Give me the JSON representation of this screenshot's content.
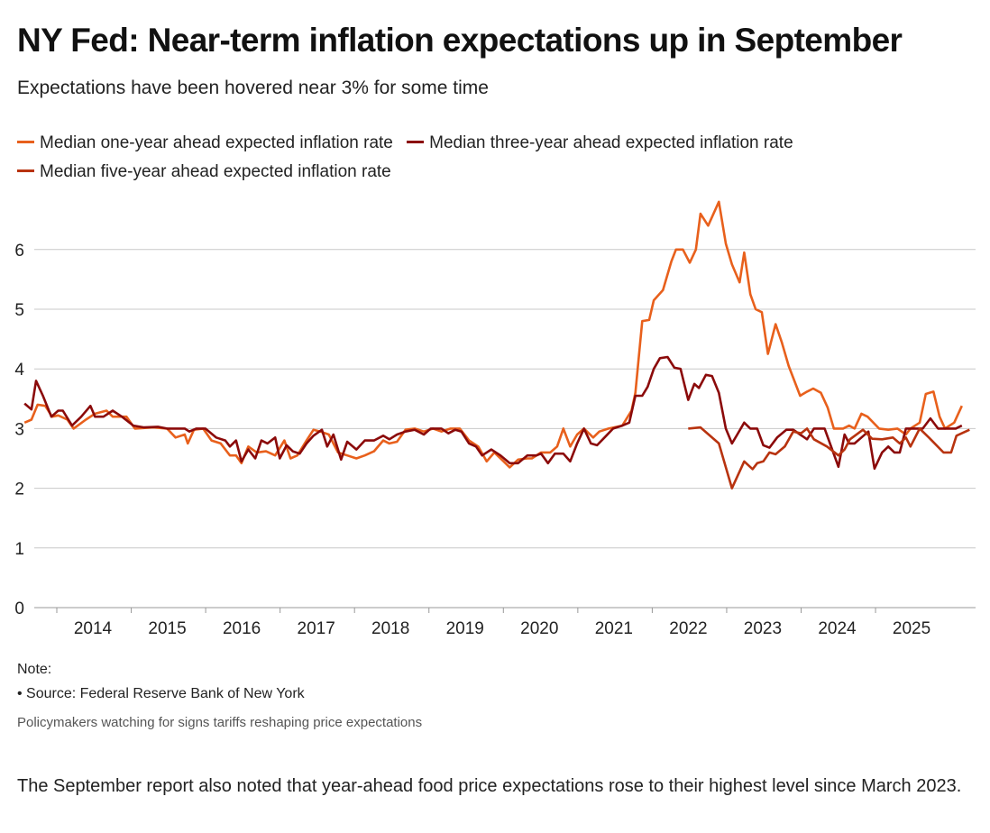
{
  "colors": {
    "one_year": "#e8601c",
    "three_year": "#8b0a0a",
    "five_year": "#b8330f",
    "grid": "#c8c8c8"
  },
  "chart_data": {
    "type": "line",
    "title": "NY Fed: Near-term inflation expectations up in September",
    "subtitle": "Expectations have been hovered near 3% for some time",
    "xlabel": "",
    "ylabel": "",
    "ylim": [
      0,
      7
    ],
    "yticks": [
      "0",
      "1",
      "2",
      "3",
      "4",
      "5",
      "6"
    ],
    "xticks": [
      "2014",
      "2015",
      "2016",
      "2017",
      "2018",
      "2019",
      "2020",
      "2021",
      "2022",
      "2023",
      "2024",
      "2025"
    ],
    "grid": true,
    "legend_position": "top",
    "series": [
      {
        "name": "Median one-year ahead expected inflation rate",
        "color_key": "one_year",
        "points": [
          [
            2013.42,
            3.1
          ],
          [
            2013.51,
            3.15
          ],
          [
            2013.59,
            3.4
          ],
          [
            2013.69,
            3.38
          ],
          [
            2013.78,
            3.2
          ],
          [
            2013.86,
            3.22
          ],
          [
            2013.98,
            3.15
          ],
          [
            2014.06,
            3.0
          ],
          [
            2014.22,
            3.15
          ],
          [
            2014.34,
            3.25
          ],
          [
            2014.49,
            3.3
          ],
          [
            2014.57,
            3.2
          ],
          [
            2014.75,
            3.2
          ],
          [
            2014.86,
            3.0
          ],
          [
            2015.1,
            3.02
          ],
          [
            2015.28,
            3.0
          ],
          [
            2015.39,
            2.85
          ],
          [
            2015.51,
            2.9
          ],
          [
            2015.55,
            2.75
          ],
          [
            2015.63,
            2.98
          ],
          [
            2015.75,
            3.0
          ],
          [
            2015.86,
            2.8
          ],
          [
            2015.98,
            2.75
          ],
          [
            2016.1,
            2.55
          ],
          [
            2016.18,
            2.55
          ],
          [
            2016.25,
            2.42
          ],
          [
            2016.34,
            2.7
          ],
          [
            2016.45,
            2.6
          ],
          [
            2016.57,
            2.62
          ],
          [
            2016.69,
            2.55
          ],
          [
            2016.81,
            2.8
          ],
          [
            2016.89,
            2.5
          ],
          [
            2016.98,
            2.55
          ],
          [
            2017.1,
            2.8
          ],
          [
            2017.19,
            2.98
          ],
          [
            2017.28,
            2.95
          ],
          [
            2017.39,
            2.9
          ],
          [
            2017.51,
            2.6
          ],
          [
            2017.63,
            2.55
          ],
          [
            2017.75,
            2.5
          ],
          [
            2017.86,
            2.55
          ],
          [
            2017.98,
            2.62
          ],
          [
            2018.1,
            2.8
          ],
          [
            2018.18,
            2.75
          ],
          [
            2018.28,
            2.78
          ],
          [
            2018.39,
            2.98
          ],
          [
            2018.51,
            3.0
          ],
          [
            2018.63,
            2.95
          ],
          [
            2018.75,
            3.0
          ],
          [
            2018.86,
            2.95
          ],
          [
            2018.98,
            3.0
          ],
          [
            2019.1,
            3.0
          ],
          [
            2019.22,
            2.8
          ],
          [
            2019.34,
            2.7
          ],
          [
            2019.45,
            2.45
          ],
          [
            2019.55,
            2.6
          ],
          [
            2019.63,
            2.5
          ],
          [
            2019.75,
            2.35
          ],
          [
            2019.86,
            2.48
          ],
          [
            2019.98,
            2.5
          ],
          [
            2020.04,
            2.5
          ],
          [
            2020.16,
            2.6
          ],
          [
            2020.28,
            2.6
          ],
          [
            2020.37,
            2.7
          ],
          [
            2020.45,
            3.0
          ],
          [
            2020.54,
            2.7
          ],
          [
            2020.63,
            2.9
          ],
          [
            2020.72,
            3.0
          ],
          [
            2020.84,
            2.85
          ],
          [
            2020.92,
            2.95
          ],
          [
            2021.04,
            3.0
          ],
          [
            2021.22,
            3.05
          ],
          [
            2021.34,
            3.3
          ],
          [
            2021.39,
            3.6
          ],
          [
            2021.48,
            4.8
          ],
          [
            2021.57,
            4.82
          ],
          [
            2021.63,
            5.15
          ],
          [
            2021.75,
            5.32
          ],
          [
            2021.86,
            5.8
          ],
          [
            2021.92,
            6.0
          ],
          [
            2022.01,
            6.0
          ],
          [
            2022.1,
            5.78
          ],
          [
            2022.18,
            6.0
          ],
          [
            2022.24,
            6.6
          ],
          [
            2022.34,
            6.4
          ],
          [
            2022.48,
            6.8
          ],
          [
            2022.57,
            6.1
          ],
          [
            2022.65,
            5.75
          ],
          [
            2022.75,
            5.45
          ],
          [
            2022.81,
            5.95
          ],
          [
            2022.89,
            5.25
          ],
          [
            2022.96,
            5.0
          ],
          [
            2023.04,
            4.95
          ],
          [
            2023.12,
            4.25
          ],
          [
            2023.22,
            4.75
          ],
          [
            2023.3,
            4.45
          ],
          [
            2023.39,
            4.05
          ],
          [
            2023.54,
            3.55
          ],
          [
            2023.63,
            3.62
          ],
          [
            2023.71,
            3.67
          ],
          [
            2023.81,
            3.6
          ],
          [
            2023.9,
            3.35
          ],
          [
            2023.98,
            3.0
          ],
          [
            2024.1,
            3.0
          ],
          [
            2024.18,
            3.05
          ],
          [
            2024.25,
            3.0
          ],
          [
            2024.34,
            3.25
          ],
          [
            2024.42,
            3.2
          ],
          [
            2024.57,
            3.0
          ],
          [
            2024.69,
            2.98
          ],
          [
            2024.81,
            3.0
          ],
          [
            2024.92,
            2.9
          ],
          [
            2024.98,
            3.0
          ],
          [
            2025.1,
            3.1
          ],
          [
            2025.18,
            3.58
          ],
          [
            2025.28,
            3.62
          ],
          [
            2025.36,
            3.2
          ],
          [
            2025.43,
            3.0
          ],
          [
            2025.55,
            3.1
          ],
          [
            2025.65,
            3.38
          ]
        ]
      },
      {
        "name": "Median three-year ahead expected inflation rate",
        "color_key": "three_year",
        "points": [
          [
            2013.42,
            3.42
          ],
          [
            2013.51,
            3.32
          ],
          [
            2013.57,
            3.8
          ],
          [
            2013.66,
            3.55
          ],
          [
            2013.77,
            3.2
          ],
          [
            2013.86,
            3.3
          ],
          [
            2013.92,
            3.3
          ],
          [
            2014.04,
            3.05
          ],
          [
            2014.16,
            3.2
          ],
          [
            2014.28,
            3.38
          ],
          [
            2014.34,
            3.2
          ],
          [
            2014.45,
            3.2
          ],
          [
            2014.57,
            3.3
          ],
          [
            2014.69,
            3.2
          ],
          [
            2014.84,
            3.05
          ],
          [
            2014.98,
            3.02
          ],
          [
            2015.16,
            3.03
          ],
          [
            2015.28,
            3.0
          ],
          [
            2015.39,
            3.0
          ],
          [
            2015.51,
            3.0
          ],
          [
            2015.57,
            2.95
          ],
          [
            2015.66,
            3.0
          ],
          [
            2015.78,
            3.0
          ],
          [
            2015.92,
            2.85
          ],
          [
            2016.04,
            2.8
          ],
          [
            2016.1,
            2.7
          ],
          [
            2016.18,
            2.8
          ],
          [
            2016.25,
            2.45
          ],
          [
            2016.34,
            2.65
          ],
          [
            2016.43,
            2.5
          ],
          [
            2016.51,
            2.8
          ],
          [
            2016.59,
            2.75
          ],
          [
            2016.69,
            2.85
          ],
          [
            2016.75,
            2.5
          ],
          [
            2016.84,
            2.72
          ],
          [
            2016.92,
            2.62
          ],
          [
            2017.01,
            2.58
          ],
          [
            2017.1,
            2.75
          ],
          [
            2017.19,
            2.88
          ],
          [
            2017.3,
            2.98
          ],
          [
            2017.37,
            2.7
          ],
          [
            2017.45,
            2.9
          ],
          [
            2017.55,
            2.48
          ],
          [
            2017.63,
            2.78
          ],
          [
            2017.75,
            2.65
          ],
          [
            2017.86,
            2.8
          ],
          [
            2017.98,
            2.8
          ],
          [
            2018.1,
            2.88
          ],
          [
            2018.18,
            2.82
          ],
          [
            2018.28,
            2.9
          ],
          [
            2018.39,
            2.95
          ],
          [
            2018.51,
            2.98
          ],
          [
            2018.63,
            2.9
          ],
          [
            2018.72,
            3.0
          ],
          [
            2018.86,
            3.0
          ],
          [
            2018.95,
            2.92
          ],
          [
            2019.04,
            2.98
          ],
          [
            2019.12,
            2.95
          ],
          [
            2019.22,
            2.75
          ],
          [
            2019.31,
            2.7
          ],
          [
            2019.39,
            2.55
          ],
          [
            2019.51,
            2.65
          ],
          [
            2019.63,
            2.55
          ],
          [
            2019.75,
            2.42
          ],
          [
            2019.86,
            2.42
          ],
          [
            2019.98,
            2.55
          ],
          [
            2020.1,
            2.55
          ],
          [
            2020.16,
            2.58
          ],
          [
            2020.25,
            2.42
          ],
          [
            2020.34,
            2.58
          ],
          [
            2020.45,
            2.58
          ],
          [
            2020.54,
            2.45
          ],
          [
            2020.63,
            2.75
          ],
          [
            2020.72,
            3.0
          ],
          [
            2020.81,
            2.75
          ],
          [
            2020.89,
            2.72
          ],
          [
            2021.01,
            2.88
          ],
          [
            2021.1,
            3.0
          ],
          [
            2021.22,
            3.05
          ],
          [
            2021.31,
            3.1
          ],
          [
            2021.39,
            3.55
          ],
          [
            2021.48,
            3.55
          ],
          [
            2021.55,
            3.7
          ],
          [
            2021.63,
            4.0
          ],
          [
            2021.71,
            4.18
          ],
          [
            2021.81,
            4.2
          ],
          [
            2021.9,
            4.02
          ],
          [
            2021.98,
            4.0
          ],
          [
            2022.08,
            3.48
          ],
          [
            2022.16,
            3.75
          ],
          [
            2022.22,
            3.68
          ],
          [
            2022.31,
            3.9
          ],
          [
            2022.39,
            3.88
          ],
          [
            2022.48,
            3.6
          ],
          [
            2022.57,
            3.0
          ],
          [
            2022.65,
            2.75
          ],
          [
            2022.72,
            2.9
          ],
          [
            2022.81,
            3.1
          ],
          [
            2022.89,
            3.0
          ],
          [
            2022.98,
            3.0
          ],
          [
            2023.06,
            2.72
          ],
          [
            2023.14,
            2.68
          ],
          [
            2023.24,
            2.85
          ],
          [
            2023.36,
            2.98
          ],
          [
            2023.45,
            2.98
          ],
          [
            2023.54,
            2.9
          ],
          [
            2023.63,
            2.82
          ],
          [
            2023.72,
            3.0
          ],
          [
            2023.86,
            3.0
          ],
          [
            2024.04,
            2.36
          ],
          [
            2024.12,
            2.9
          ],
          [
            2024.18,
            2.75
          ],
          [
            2024.25,
            2.75
          ],
          [
            2024.34,
            2.85
          ],
          [
            2024.43,
            2.95
          ],
          [
            2024.51,
            2.33
          ],
          [
            2024.61,
            2.6
          ],
          [
            2024.69,
            2.7
          ],
          [
            2024.77,
            2.6
          ],
          [
            2024.84,
            2.6
          ],
          [
            2024.92,
            3.0
          ],
          [
            2025.14,
            3.0
          ],
          [
            2025.24,
            3.17
          ],
          [
            2025.34,
            3.0
          ],
          [
            2025.57,
            3.0
          ],
          [
            2025.65,
            3.05
          ]
        ]
      },
      {
        "name": "Median five-year ahead expected inflation rate",
        "color_key": "five_year",
        "points": [
          [
            2022.08,
            3.0
          ],
          [
            2022.24,
            3.02
          ],
          [
            2022.48,
            2.75
          ],
          [
            2022.65,
            2.0
          ],
          [
            2022.81,
            2.45
          ],
          [
            2022.92,
            2.32
          ],
          [
            2022.98,
            2.42
          ],
          [
            2023.06,
            2.45
          ],
          [
            2023.14,
            2.6
          ],
          [
            2023.22,
            2.57
          ],
          [
            2023.34,
            2.7
          ],
          [
            2023.45,
            2.95
          ],
          [
            2023.55,
            2.92
          ],
          [
            2023.63,
            3.0
          ],
          [
            2023.72,
            2.82
          ],
          [
            2023.89,
            2.7
          ],
          [
            2024.04,
            2.55
          ],
          [
            2024.12,
            2.65
          ],
          [
            2024.19,
            2.82
          ],
          [
            2024.36,
            2.98
          ],
          [
            2024.48,
            2.83
          ],
          [
            2024.61,
            2.82
          ],
          [
            2024.75,
            2.85
          ],
          [
            2024.84,
            2.75
          ],
          [
            2024.92,
            2.85
          ],
          [
            2024.98,
            2.7
          ],
          [
            2025.1,
            3.0
          ],
          [
            2025.22,
            2.85
          ],
          [
            2025.41,
            2.6
          ],
          [
            2025.51,
            2.6
          ],
          [
            2025.58,
            2.88
          ],
          [
            2025.75,
            2.98
          ]
        ]
      }
    ]
  },
  "notes": {
    "label": "Note:",
    "source": "• Source: Federal Reserve Bank of New York",
    "caption": "Policymakers watching for signs tariffs reshaping price expectations"
  },
  "article": {
    "paragraph": "The September report also noted that year-ahead food price expectations rose to their highest level since March 2023."
  }
}
